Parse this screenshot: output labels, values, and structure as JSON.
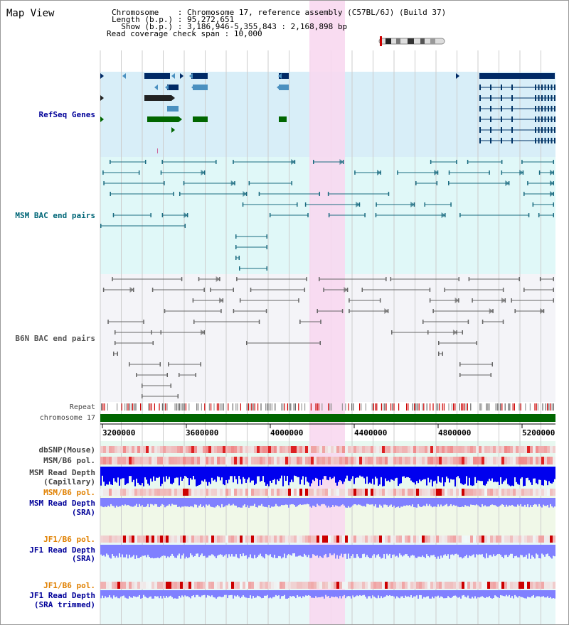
{
  "view_title": "Map View",
  "header": {
    "chromosome_label": "Chromosome",
    "chromosome_value": "Chromosome 17, reference assembly (C57BL/6J) (Build 37)",
    "length_label": "Length (b.p.)",
    "length_value": "95,272,651",
    "show_label": "Show (b.p.)",
    "show_value": "3,186,946-5,355,843 : 2,168,898 bp",
    "read_cov_label": "Read coverage check span",
    "read_cov_value": "10,000"
  },
  "tracks": {
    "refseq": "RefSeq Genes",
    "msm_bac": "MSM BAC end pairs",
    "b6n_bac": "B6N BAC end pairs",
    "repeat": "Repeat",
    "chromosome": "chromosome 17",
    "dbsnp": "dbSNP(Mouse)",
    "msm_b6_pol_1": "MSM/B6 pol.",
    "msm_read_depth_cap_1": "MSM Read Depth",
    "msm_read_depth_cap_2": "(Capillary)",
    "msm_b6_pol_2": "MSM/B6 pol.",
    "msm_read_depth_sra_1": "MSM Read Depth",
    "msm_read_depth_sra_2": "(SRA)",
    "jf1_b6_pol_1": "JF1/B6 pol.",
    "jf1_read_depth_sra_1": "JF1 Read Depth",
    "jf1_read_depth_sra_2": "(SRA)",
    "jf1_b6_pol_2": "JF1/B6 pol.",
    "jf1_read_depth_trim_1": "JF1 Read Depth",
    "jf1_read_depth_trim_2": "(SRA trimmed)"
  },
  "axis_ticks": [
    "3200000",
    "3600000",
    "4000000",
    "4400000",
    "4800000",
    "5200000"
  ],
  "colors": {
    "refseq_bg": "#d8eef8",
    "msm_bg": "#e0f8f8",
    "b6n_bg": "#f4f4f8",
    "highlight": "#f8d8f0",
    "refseq_dark": "#002a66",
    "refseq_light": "#4a90c0",
    "refseq_green": "#006600",
    "msm_feature": "#1a6b80",
    "b6n_feature": "#666666",
    "chromosome_bar": "#006600",
    "depth_dark": "#0000ee",
    "depth_light": "#8080ff"
  }
}
